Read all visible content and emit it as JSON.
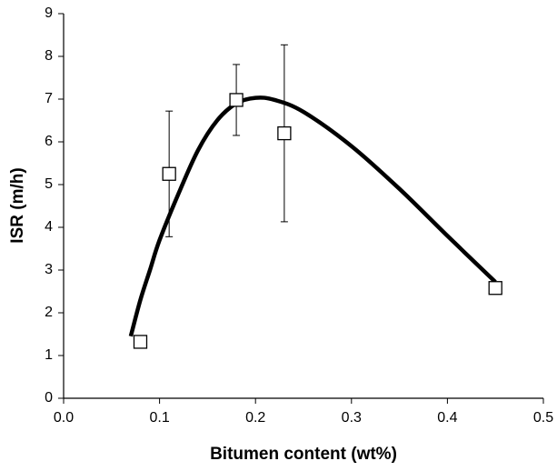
{
  "chart_data": {
    "type": "scatter",
    "xlabel": "Bitumen content (wt%)",
    "ylabel": "ISR (m/h)",
    "xlim": [
      0,
      0.5
    ],
    "ylim": [
      0,
      9
    ],
    "xticks": [
      {
        "value": 0,
        "label": "0.0"
      },
      0.1,
      0.2,
      0.3,
      0.4,
      0.5
    ],
    "yticks": [
      0,
      1,
      2,
      3,
      4,
      5,
      6,
      7,
      8,
      9
    ],
    "series": [
      {
        "color": "#000000",
        "x": [
          0.08,
          0.11,
          0.18,
          0.23,
          0.45
        ],
        "values": [
          1.32,
          5.25,
          6.98,
          6.2,
          2.58
        ],
        "errors": [
          0.1,
          1.47,
          0.83,
          2.07,
          0.1
        ]
      },
      {
        "color": "#000000",
        "x": [
          0.07,
          0.08,
          0.09,
          0.1,
          0.12,
          0.14,
          0.16,
          0.18,
          0.2,
          0.22,
          0.25,
          0.3,
          0.35,
          0.4,
          0.45
        ],
        "values": [
          1.45,
          2.3,
          3.0,
          3.7,
          4.8,
          5.8,
          6.5,
          6.9,
          7.03,
          6.98,
          6.7,
          5.9,
          4.9,
          3.8,
          2.72
        ]
      }
    ]
  }
}
